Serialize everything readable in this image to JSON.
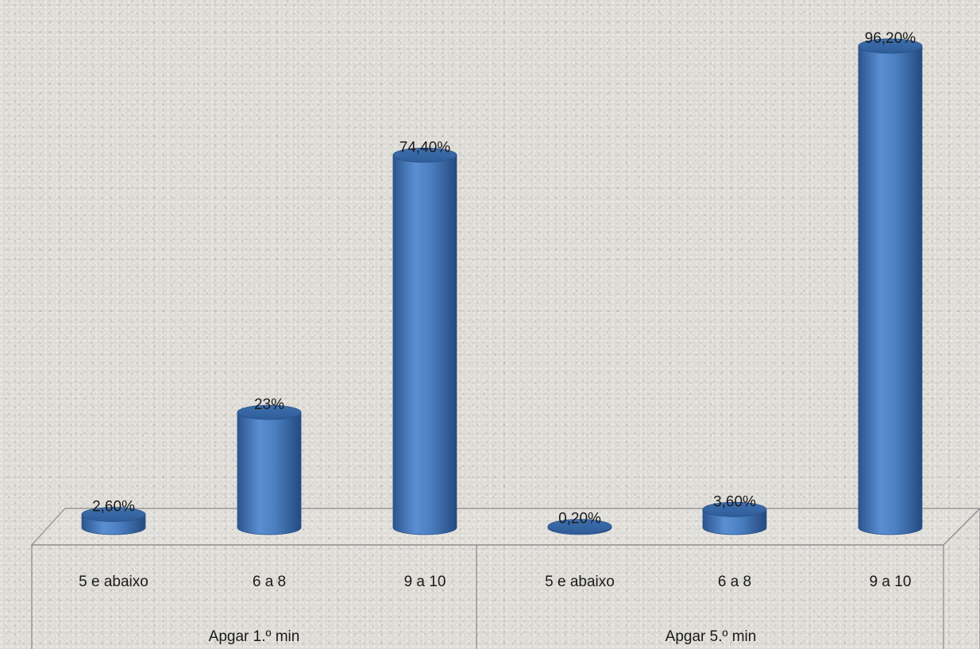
{
  "chart_data": {
    "type": "bar",
    "groups": [
      {
        "label": "Apgar 1.º min",
        "categories": [
          "5 e abaixo",
          "6 a 8",
          "9 a 10"
        ],
        "values": [
          2.6,
          23,
          74.4
        ],
        "data_labels": [
          "2,60%",
          "23%",
          "74,40%"
        ]
      },
      {
        "label": "Apgar 5.º min",
        "categories": [
          "5 e abaixo",
          "6 a 8",
          "9 a 10"
        ],
        "values": [
          0.2,
          3.6,
          96.2
        ],
        "data_labels": [
          "0,20%",
          "3,60%",
          "96,20%"
        ]
      }
    ],
    "ylim": [
      0,
      100
    ],
    "grid": false,
    "legend": "none",
    "bar_style": "3d-cylinder",
    "bar_color": "#4a7ebf"
  }
}
